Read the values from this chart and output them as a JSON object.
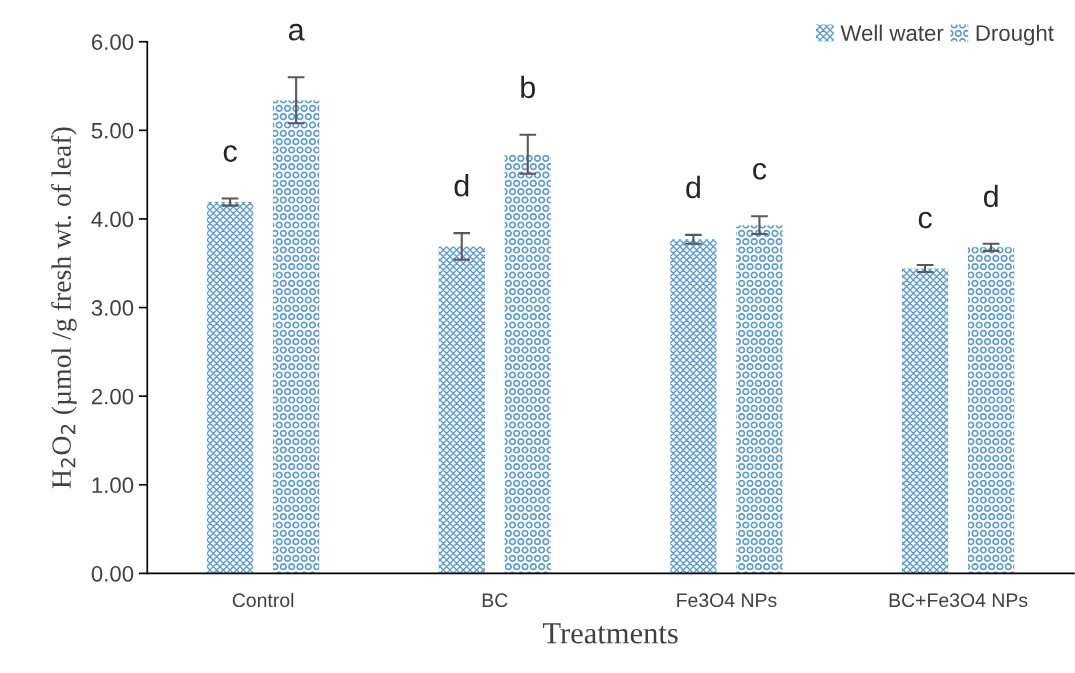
{
  "chart_data": {
    "type": "bar",
    "xlabel": "Treatments",
    "ylabel": "H$_{2}$O$_{2}$ (µmol /g fresh wt. of leaf)",
    "categories": [
      "Control",
      "BC",
      "Fe3O4 NPs",
      "BC+Fe3O4 NPs"
    ],
    "series": [
      {
        "name": "Well water",
        "color": "#5b9bd5",
        "values": [
          4.19,
          3.69,
          3.77,
          3.44
        ],
        "errors": [
          0.04,
          0.15,
          0.05,
          0.04
        ]
      },
      {
        "name": "Drought",
        "color": "#5b9bd5",
        "values": [
          5.34,
          4.73,
          3.93,
          3.68
        ],
        "errors": [
          0.26,
          0.22,
          0.1,
          0.04
        ]
      }
    ],
    "ylim": [
      0,
      6
    ],
    "yticks": [
      {
        "value": 0,
        "label": "0.00"
      },
      {
        "value": 1,
        "label": "1.00"
      },
      {
        "value": 2,
        "label": "2.00"
      },
      {
        "value": 3,
        "label": "3.00"
      },
      {
        "value": 4,
        "label": "4.00"
      },
      {
        "value": 5,
        "label": "5.00"
      },
      {
        "value": 6,
        "label": "6.00"
      }
    ],
    "annotations": [
      "c",
      "a",
      "d",
      "b",
      "d",
      "c",
      "c",
      "d"
    ],
    "grid": false,
    "legend": "top right"
  }
}
